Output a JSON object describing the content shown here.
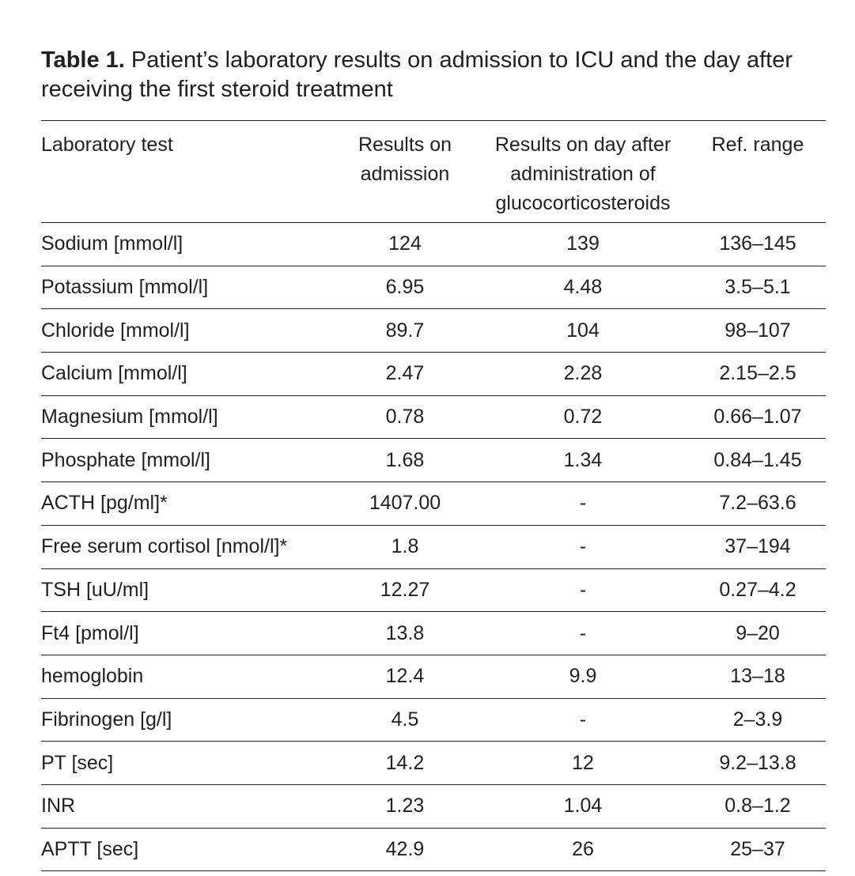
{
  "caption": {
    "label": "Table 1.",
    "text": " Patient’s laboratory results on admission to ICU and the day after receiving the first steroid treatment"
  },
  "table": {
    "headers": [
      "Laboratory test",
      "Results on admission",
      "Results on day after administration of glucocorticosteroids",
      "Ref. range"
    ],
    "rows": [
      [
        "Sodium [mmol/l]",
        "124",
        "139",
        "136–145"
      ],
      [
        "Potassium [mmol/l]",
        "6.95",
        "4.48",
        "3.5–5.1"
      ],
      [
        "Chloride [mmol/l]",
        "89.7",
        "104",
        "98–107"
      ],
      [
        "Calcium [mmol/l]",
        "2.47",
        "2.28",
        "2.15–2.5"
      ],
      [
        "Magnesium [mmol/l]",
        "0.78",
        "0.72",
        "0.66–1.07"
      ],
      [
        "Phosphate [mmol/l]",
        "1.68",
        "1.34",
        "0.84–1.45"
      ],
      [
        "ACTH [pg/ml]*",
        "1407.00",
        "-",
        "7.2–63.6"
      ],
      [
        "Free serum cortisol [nmol/l]*",
        "1.8",
        "-",
        "37–194"
      ],
      [
        "TSH [uU/ml]",
        "12.27",
        "-",
        "0.27–4.2"
      ],
      [
        "Ft4 [pmol/l]",
        "13.8",
        "-",
        "9–20"
      ],
      [
        "hemoglobin",
        "12.4",
        "9.9",
        "13–18"
      ],
      [
        "Fibrinogen [g/l]",
        "4.5",
        "-",
        "2–3.9"
      ],
      [
        "PT [sec]",
        "14.2",
        "12",
        "9.2–13.8"
      ],
      [
        "INR",
        "1.23",
        "1.04",
        "0.8–1.2"
      ],
      [
        "APTT [sec]",
        "42.9",
        "26",
        "25–37"
      ]
    ]
  }
}
